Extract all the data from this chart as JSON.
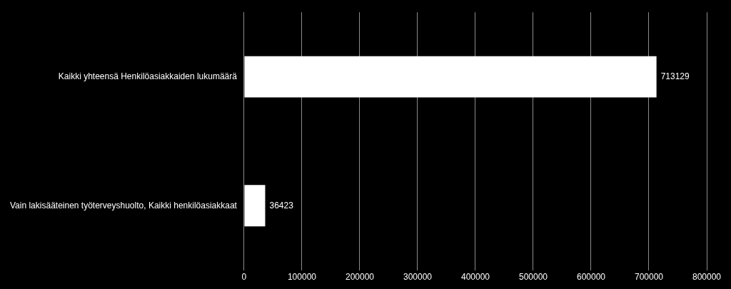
{
  "chart_data": {
    "type": "bar",
    "orientation": "horizontal",
    "categories": [
      "Kaikki yhteensä Henkilöasiakkaiden lukumäärä",
      "Vain lakisääteinen työterveyshuolto, Kaikki henkilöasiakkaat"
    ],
    "values": [
      713129,
      36423
    ],
    "color": "#ffffff",
    "xlim": [
      0,
      800000
    ],
    "xticks": [
      0,
      100000,
      200000,
      300000,
      400000,
      500000,
      600000,
      700000,
      800000
    ],
    "grid": "x",
    "legend": false,
    "data_labels": true
  }
}
